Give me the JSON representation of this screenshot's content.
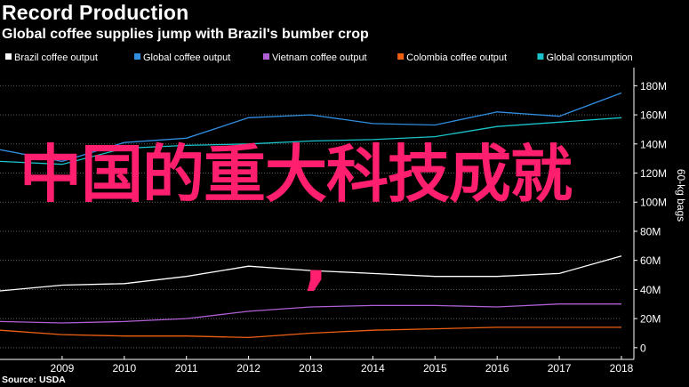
{
  "header": {
    "title": "Record Production",
    "subtitle": "Global coffee supplies jump with Brazil's bumber crop"
  },
  "source": "Source: USDA",
  "overlay": {
    "text": "中国的重大科技成就",
    "comma": ",",
    "color": "#ff1f6e"
  },
  "chart_data": {
    "type": "line",
    "title": "Record Production",
    "subtitle": "Global coffee supplies jump with Brazil's bumber crop",
    "xlabel": "",
    "ylabel": "60-kg bags",
    "x": [
      2008,
      2009,
      2010,
      2011,
      2012,
      2013,
      2014,
      2015,
      2016,
      2017,
      2018
    ],
    "xticks": [
      2009,
      2010,
      2011,
      2012,
      2013,
      2014,
      2015,
      2016,
      2017,
      2018
    ],
    "xlim": [
      2008,
      2018
    ],
    "ylim": [
      -5,
      190
    ],
    "yticks": [
      0,
      20,
      40,
      60,
      80,
      100,
      120,
      140,
      160,
      180
    ],
    "ytick_labels": [
      "0",
      "20M",
      "40M",
      "60M",
      "80M",
      "100M",
      "120M",
      "140M",
      "160M",
      "180M"
    ],
    "yaxis_position": "right",
    "grid": true,
    "legend_position": "top-left",
    "series": [
      {
        "name": "Brazil coffee output",
        "color": "#ffffff",
        "values": [
          39,
          43,
          44,
          49,
          56,
          53,
          51,
          49,
          49,
          51,
          63
        ]
      },
      {
        "name": "Global coffee output",
        "color": "#2f8ee0",
        "values": [
          136,
          128,
          141,
          144,
          158,
          160,
          154,
          153,
          162,
          159,
          175
        ]
      },
      {
        "name": "Vietnam coffee output",
        "color": "#b05fd6",
        "values": [
          18,
          17,
          18,
          20,
          25,
          28,
          29,
          29,
          28,
          30,
          30
        ]
      },
      {
        "name": "Colombia coffee output",
        "color": "#f06013",
        "values": [
          12,
          9,
          8,
          8,
          7,
          10,
          12,
          13,
          14,
          14,
          14
        ]
      },
      {
        "name": "Global consumption",
        "color": "#19c3c9",
        "values": [
          128,
          126,
          137,
          139,
          140,
          142,
          143,
          145,
          152,
          155,
          158
        ]
      }
    ]
  }
}
